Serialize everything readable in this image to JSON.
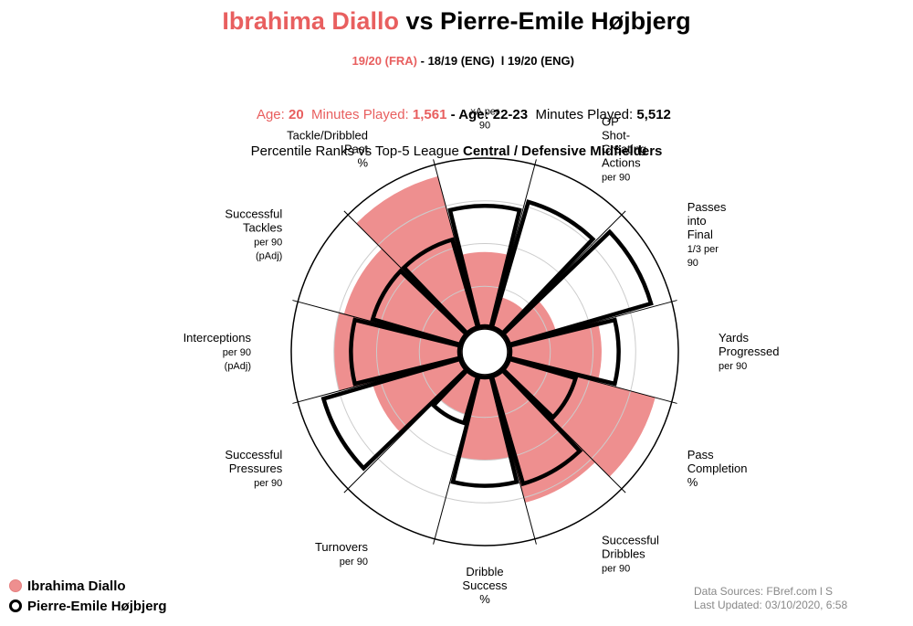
{
  "header": {
    "player1": "Ibrahima Diallo",
    "vs": " vs ",
    "player2": "Pierre-Emile Højbjerg",
    "p1_season": "19/20 (FRA)",
    "p2_season": " - 18/19 (ENG)  l 19/20 (ENG)",
    "p1_age_label": "Age: ",
    "p1_age": "20",
    "p1_min_label": "  Minutes Played: ",
    "p1_min": "1,561",
    "p2_age_label": " - Age: ",
    "p2_age": "22-23",
    "p2_min_label": "  Minutes Played: ",
    "p2_min": "5,512",
    "subtitle_prefix": "Percentile Ranks vs Top-5 League ",
    "subtitle_bold": "Central / Defensive Midfielders"
  },
  "legend": {
    "player1": "Ibrahima Diallo",
    "player2": "Pierre-Emile Højbjerg"
  },
  "footer": {
    "line1": "Data Sources: FBref.com l S",
    "line2": "Last Updated: 03/10/2020, 6:58"
  },
  "colors": {
    "player1_fill": "#ee8f8f",
    "player1_text": "#e85f5f",
    "player2_stroke": "#000000",
    "grid": "#cccccc"
  },
  "chart_data": {
    "type": "radar",
    "scale": [
      0,
      100
    ],
    "gridlines": [
      25,
      50,
      75,
      100
    ],
    "categories": [
      {
        "lines": [
          "xA per",
          "90"
        ]
      },
      {
        "lines": [
          "OP",
          "Shot-",
          "Creating",
          "Actions",
          "per 90"
        ]
      },
      {
        "lines": [
          "Passes",
          "into",
          "Final",
          "1/3 per",
          "90"
        ]
      },
      {
        "lines": [
          "Yards",
          "Progressed",
          "per 90"
        ]
      },
      {
        "lines": [
          "Pass",
          "Completion",
          "%"
        ]
      },
      {
        "lines": [
          "Successful",
          "Dribbles",
          "per 90"
        ]
      },
      {
        "lines": [
          "Dribble",
          "Success",
          "%"
        ]
      },
      {
        "lines": [
          "Turnovers",
          "per 90"
        ]
      },
      {
        "lines": [
          "Successful",
          "Pressures",
          "per 90"
        ]
      },
      {
        "lines": [
          "Interceptions",
          "per 90",
          "(pAdj)"
        ]
      },
      {
        "lines": [
          "Successful",
          "Tackles",
          "per 90",
          "(pAdj)"
        ]
      },
      {
        "lines": [
          "Tackle/Dribbled",
          "Past",
          "%"
        ]
      }
    ],
    "series": [
      {
        "name": "Ibrahima Diallo",
        "style": "fill",
        "values": [
          45,
          20,
          30,
          55,
          90,
          78,
          50,
          25,
          55,
          75,
          72,
          93
        ]
      },
      {
        "name": "Pierre-Emile Højbjerg",
        "style": "outline",
        "values": [
          72,
          78,
          88,
          65,
          42,
          67,
          65,
          30,
          85,
          65,
          55,
          55
        ]
      }
    ]
  }
}
